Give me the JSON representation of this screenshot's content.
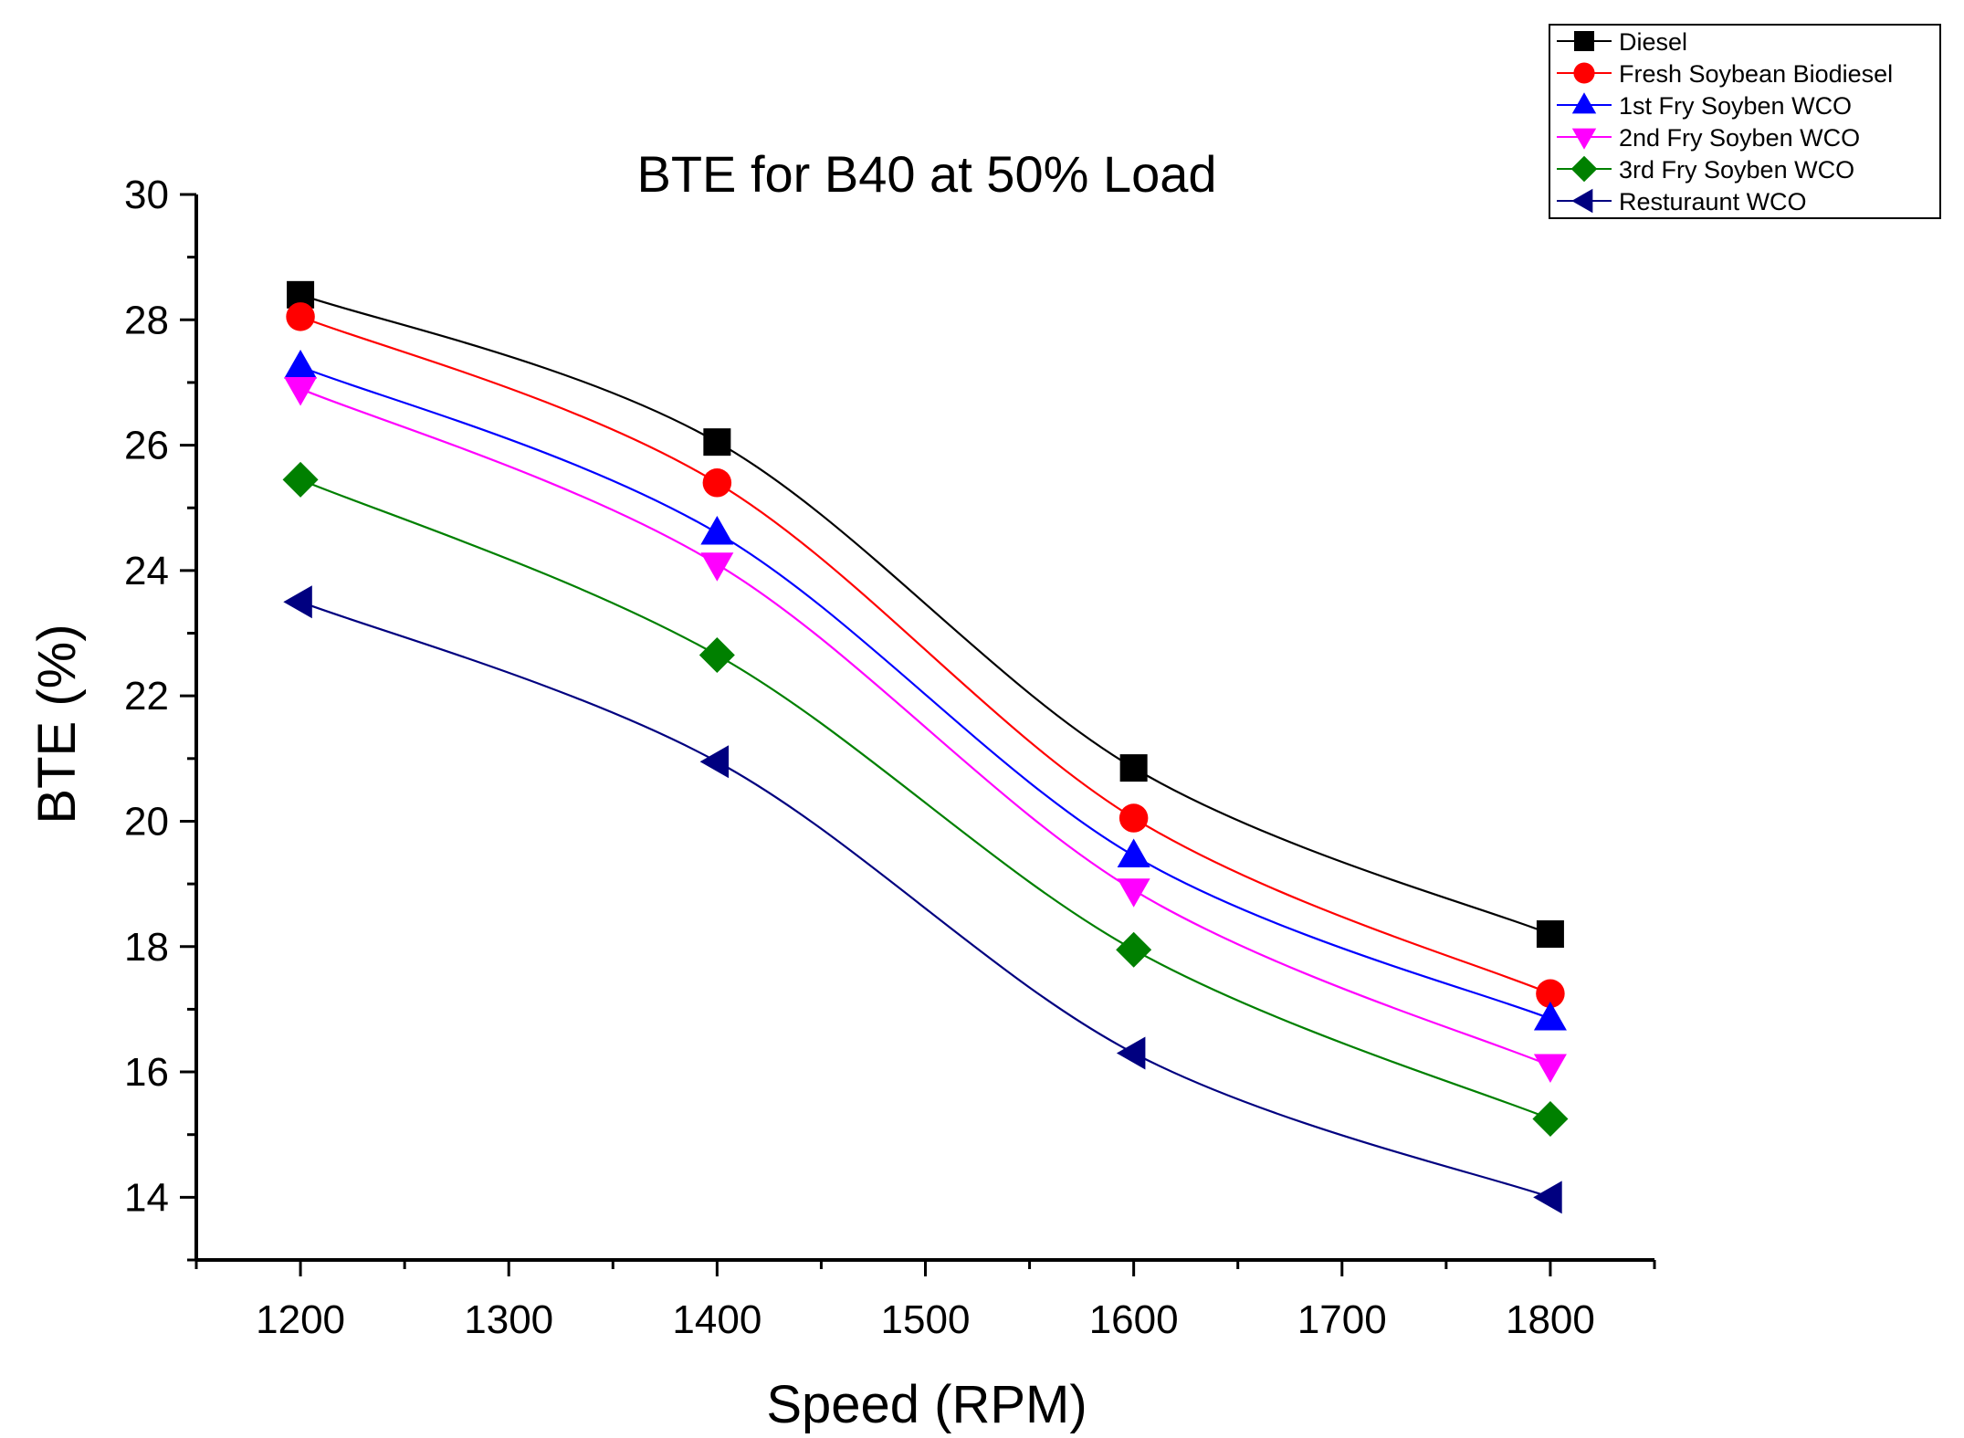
{
  "chart_data": {
    "type": "line",
    "title": "BTE for B40 at 50% Load",
    "xlabel": "Speed (RPM)",
    "ylabel": "BTE (%)",
    "xlim": [
      1150,
      1850
    ],
    "ylim": [
      13,
      30
    ],
    "x_ticks": [
      1200,
      1300,
      1400,
      1500,
      1600,
      1700,
      1800
    ],
    "y_ticks": [
      14,
      16,
      18,
      20,
      22,
      24,
      26,
      28,
      30
    ],
    "x": [
      1200,
      1400,
      1600,
      1800
    ],
    "grid": false,
    "legend_position": "top-right",
    "series": [
      {
        "name": "Diesel",
        "values": [
          28.4,
          26.05,
          20.85,
          18.2
        ],
        "color": "#000000",
        "marker": "square"
      },
      {
        "name": "Fresh Soybean Biodiesel",
        "values": [
          28.05,
          25.4,
          20.05,
          17.25
        ],
        "color": "#ff0000",
        "marker": "circle"
      },
      {
        "name": "1st Fry Soyben WCO",
        "values": [
          27.25,
          24.6,
          19.45,
          16.85
        ],
        "color": "#0000ff",
        "marker": "triangle-up"
      },
      {
        "name": "2nd Fry Soyben WCO",
        "values": [
          26.9,
          24.1,
          18.9,
          16.1
        ],
        "color": "#ff00ff",
        "marker": "triangle-down"
      },
      {
        "name": "3rd Fry Soyben WCO",
        "values": [
          25.45,
          22.65,
          17.95,
          15.25
        ],
        "color": "#008000",
        "marker": "diamond"
      },
      {
        "name": "Resturaunt WCO",
        "values": [
          23.5,
          20.95,
          16.3,
          14.0
        ],
        "color": "#000080",
        "marker": "triangle-left"
      }
    ]
  }
}
